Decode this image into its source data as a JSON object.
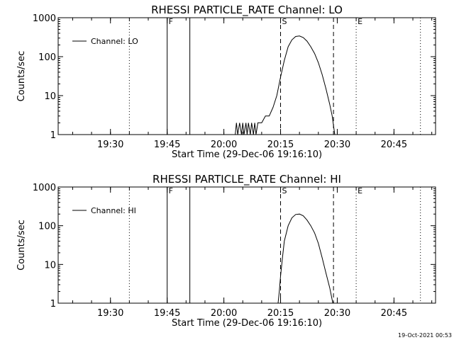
{
  "timestamp": "19-Oct-2021 00:53",
  "chart_data": [
    {
      "type": "line",
      "title": "RHESSI PARTICLE_RATE Channel: LO",
      "xlabel": "Start Time (29-Dec-06 19:16:10)",
      "ylabel": "Counts/sec",
      "yscale": "log",
      "xlim": [
        "19:16:10",
        "20:56:00"
      ],
      "ylim": [
        1,
        1000
      ],
      "xticks": [
        "19:30",
        "19:45",
        "20:00",
        "20:15",
        "20:30",
        "20:45"
      ],
      "yticks": [
        "1",
        "10",
        "100",
        "1000"
      ],
      "legend": {
        "position": "top-left",
        "entries": [
          "Channel: LO"
        ]
      },
      "markers": [
        {
          "label": "F",
          "time": "19:45:00",
          "style": "solid"
        },
        {
          "label": "",
          "time": "19:51:00",
          "style": "solid"
        },
        {
          "label": "S",
          "time": "20:15:00",
          "style": "dashed"
        },
        {
          "label": "",
          "time": "20:29:00",
          "style": "dashed"
        },
        {
          "label": "E",
          "time": "20:35:00",
          "style": "dotted"
        },
        {
          "label": "",
          "time": "19:35:00",
          "style": "dotted"
        },
        {
          "label": "",
          "time": "20:52:00",
          "style": "dotted"
        }
      ],
      "series": [
        {
          "name": "Channel: LO",
          "points": [
            [
              "20:03:00",
              1
            ],
            [
              "20:03:20",
              2
            ],
            [
              "20:03:40",
              1
            ],
            [
              "20:04:10",
              2
            ],
            [
              "20:04:40",
              1
            ],
            [
              "20:05:00",
              2
            ],
            [
              "20:05:20",
              1
            ],
            [
              "20:05:50",
              2
            ],
            [
              "20:06:10",
              1
            ],
            [
              "20:06:30",
              2
            ],
            [
              "20:07:00",
              1
            ],
            [
              "20:07:20",
              2
            ],
            [
              "20:07:50",
              1
            ],
            [
              "20:08:10",
              2
            ],
            [
              "20:08:30",
              1
            ],
            [
              "20:09:00",
              2
            ],
            [
              "20:10:00",
              2
            ],
            [
              "20:11:00",
              3
            ],
            [
              "20:12:00",
              3
            ],
            [
              "20:13:00",
              5
            ],
            [
              "20:14:00",
              10
            ],
            [
              "20:15:00",
              30
            ],
            [
              "20:16:00",
              80
            ],
            [
              "20:17:00",
              180
            ],
            [
              "20:18:00",
              270
            ],
            [
              "20:19:00",
              330
            ],
            [
              "20:20:00",
              340
            ],
            [
              "20:21:00",
              310
            ],
            [
              "20:22:00",
              250
            ],
            [
              "20:23:00",
              180
            ],
            [
              "20:24:00",
              120
            ],
            [
              "20:25:00",
              70
            ],
            [
              "20:26:00",
              35
            ],
            [
              "20:27:00",
              15
            ],
            [
              "20:28:00",
              6
            ],
            [
              "20:28:40",
              3
            ],
            [
              "20:29:20",
              1
            ]
          ]
        }
      ]
    },
    {
      "type": "line",
      "title": "RHESSI PARTICLE_RATE Channel: HI",
      "xlabel": "Start Time (29-Dec-06 19:16:10)",
      "ylabel": "Counts/sec",
      "yscale": "log",
      "xlim": [
        "19:16:10",
        "20:56:00"
      ],
      "ylim": [
        1,
        1000
      ],
      "xticks": [
        "19:30",
        "19:45",
        "20:00",
        "20:15",
        "20:30",
        "20:45"
      ],
      "yticks": [
        "1",
        "10",
        "100",
        "1000"
      ],
      "legend": {
        "position": "top-left",
        "entries": [
          "Channel: HI"
        ]
      },
      "markers": [
        {
          "label": "F",
          "time": "19:45:00",
          "style": "solid"
        },
        {
          "label": "",
          "time": "19:51:00",
          "style": "solid"
        },
        {
          "label": "S",
          "time": "20:15:00",
          "style": "dashed"
        },
        {
          "label": "",
          "time": "20:29:00",
          "style": "dashed"
        },
        {
          "label": "E",
          "time": "20:35:00",
          "style": "dotted"
        },
        {
          "label": "",
          "time": "19:35:00",
          "style": "dotted"
        },
        {
          "label": "",
          "time": "20:52:00",
          "style": "dotted"
        }
      ],
      "series": [
        {
          "name": "Channel: HI",
          "points": [
            [
              "20:14:20",
              1
            ],
            [
              "20:14:40",
              2
            ],
            [
              "20:15:00",
              5
            ],
            [
              "20:15:30",
              15
            ],
            [
              "20:16:00",
              40
            ],
            [
              "20:17:00",
              100
            ],
            [
              "20:18:00",
              160
            ],
            [
              "20:19:00",
              195
            ],
            [
              "20:20:00",
              200
            ],
            [
              "20:21:00",
              180
            ],
            [
              "20:22:00",
              140
            ],
            [
              "20:23:00",
              100
            ],
            [
              "20:24:00",
              65
            ],
            [
              "20:25:00",
              35
            ],
            [
              "20:26:00",
              15
            ],
            [
              "20:27:00",
              6
            ],
            [
              "20:28:00",
              2.5
            ],
            [
              "20:28:50",
              1
            ]
          ]
        }
      ]
    }
  ]
}
